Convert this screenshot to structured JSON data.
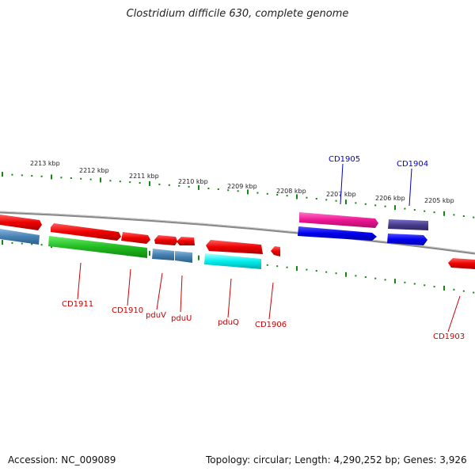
{
  "title": "Clostridium difficile 630, complete genome",
  "footer": {
    "accession": "Accession: NC_009089",
    "summary": "Topology: circular; Length: 4,290,252 bp; Genes: 3,926"
  },
  "colors": {
    "label_forward": "#0000cc",
    "label_reverse": "#cc0000",
    "tick": "#118811",
    "backbone": "#808080"
  },
  "scale_labels": [
    "2213 kbp",
    "2212 kbp",
    "2211 kbp",
    "2210 kbp",
    "2209 kbp",
    "2208 kbp",
    "2207 kbp",
    "2206 kbp",
    "2205 kbp"
  ],
  "gene_labels": {
    "forward": [
      "CD1905",
      "CD1904"
    ],
    "reverse": [
      "CD1911",
      "CD1910",
      "pduV",
      "pduU",
      "pduQ",
      "CD1906",
      "CD1903"
    ]
  },
  "feature_colors": [
    "red",
    "steelblue",
    "green",
    "cyan",
    "magenta",
    "blue",
    "darkslateblue"
  ]
}
